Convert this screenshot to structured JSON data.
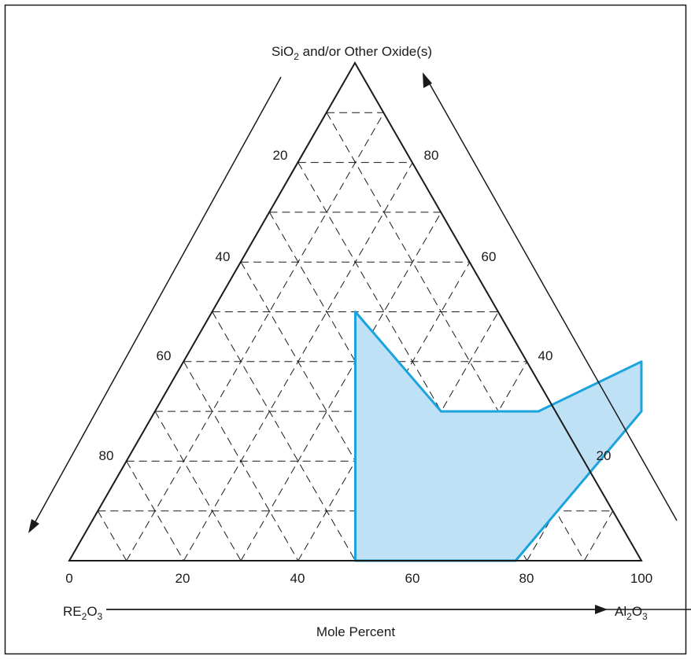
{
  "vertices": {
    "top": {
      "main": "SiO",
      "sub": "2",
      "rest": " and/or Other Oxide(s)"
    },
    "left": {
      "main": "RE",
      "sub1": "2",
      "mid": "O",
      "sub2": "3"
    },
    "right": {
      "main": "Al",
      "sub1": "2",
      "mid": "O",
      "sub2": "3"
    }
  },
  "bottom_axis": {
    "label": "Mole Percent",
    "ticks": [
      "0",
      "20",
      "40",
      "60",
      "80",
      "100"
    ]
  },
  "left_side_ticks": [
    "20",
    "40",
    "60",
    "80"
  ],
  "right_side_ticks": [
    "80",
    "60",
    "40",
    "20"
  ],
  "colors": {
    "region_fill": "#bfe1f5",
    "region_stroke": "#1aa3dc",
    "lines": "#1a1a1a"
  },
  "chart_data": {
    "type": "ternary",
    "components": [
      "SiO2 and/or Other Oxide(s)",
      "RE2O3",
      "Al2O3"
    ],
    "axis_label": "Mole Percent",
    "grid_step": 10,
    "region_vertices_al2o3_sio2": [
      [
        25,
        50
      ],
      [
        50,
        30
      ],
      [
        67,
        30
      ],
      [
        80,
        40
      ],
      [
        85,
        30
      ],
      [
        78,
        0
      ],
      [
        50,
        0
      ]
    ]
  }
}
